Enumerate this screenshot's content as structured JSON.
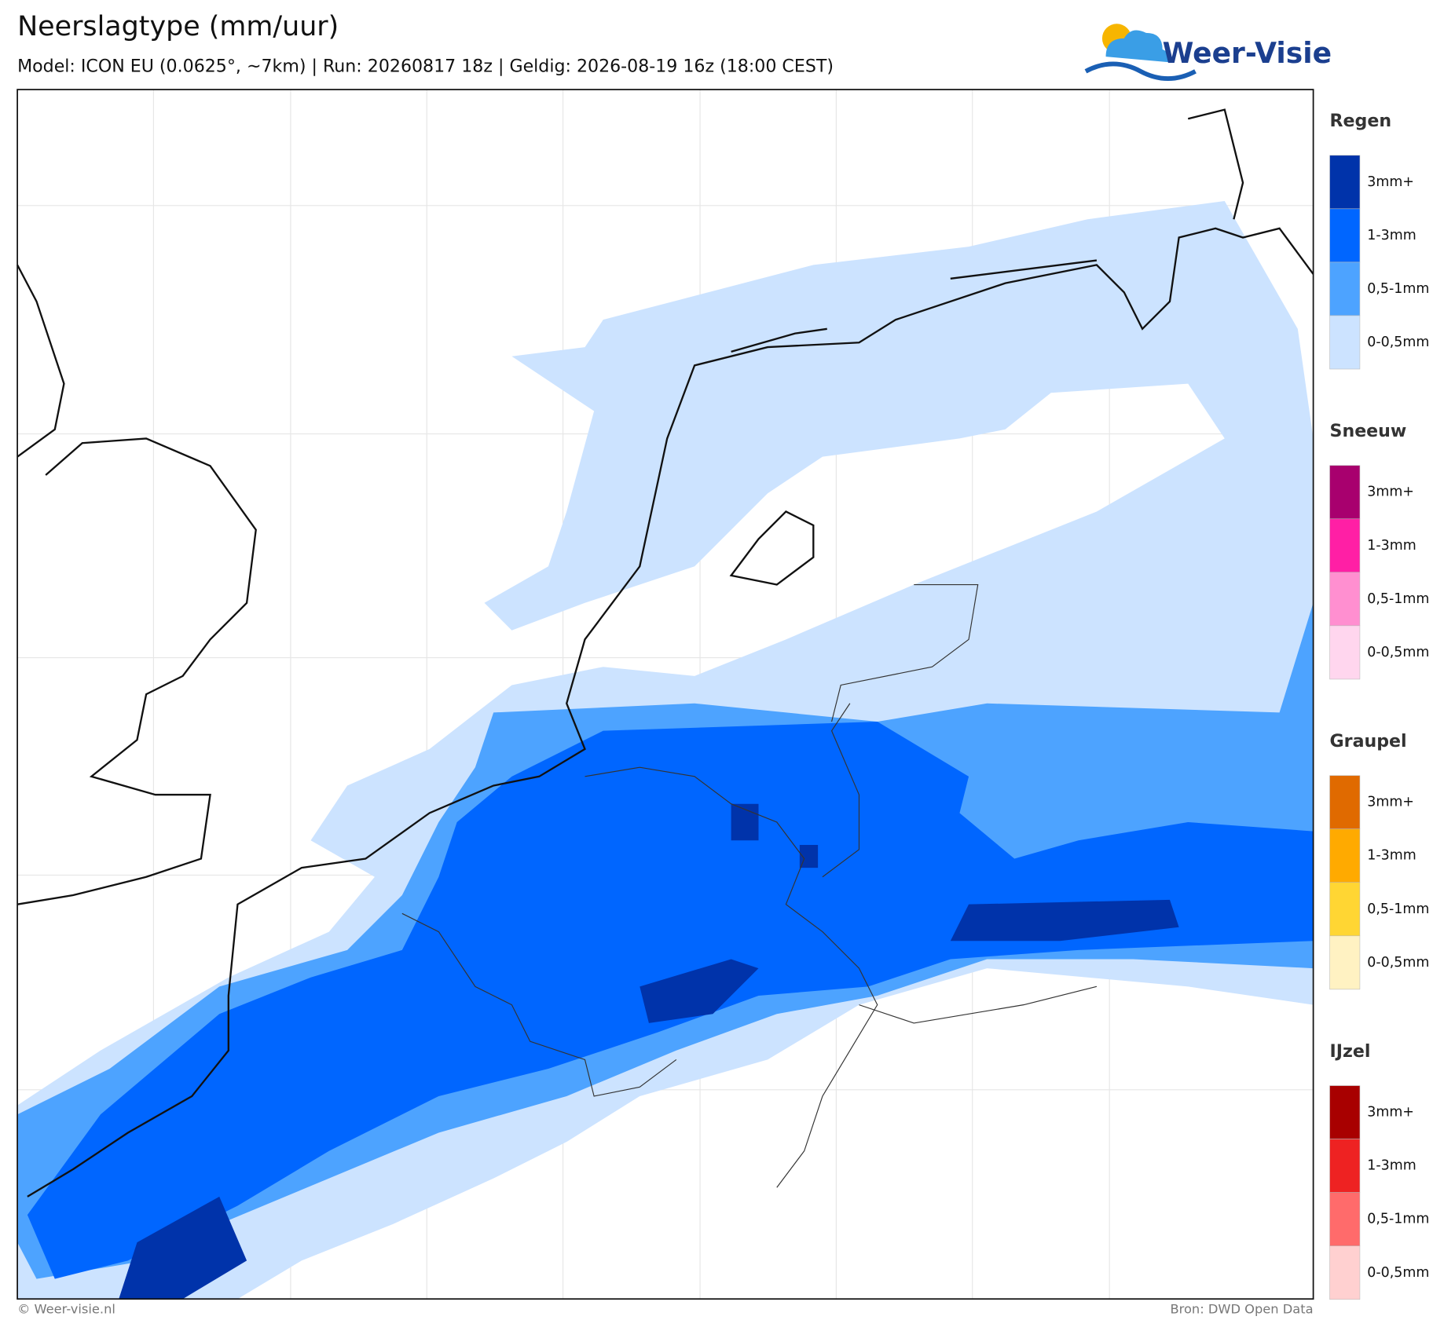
{
  "header": {
    "title": "Neerslagtype (mm/uur)",
    "subtitle": "Model: ICON EU (0.0625°, ~7km)  |  Run: 20260817 18z  |  Geldig: 2026-08-19 16z (18:00 CEST)"
  },
  "logo": {
    "text": "Weer-Visie"
  },
  "legend": [
    {
      "title": "Regen",
      "items": [
        {
          "label": "3mm+",
          "color": "#0033aa"
        },
        {
          "label": "1-3mm",
          "color": "#0066ff"
        },
        {
          "label": "0,5-1mm",
          "color": "#4da3ff"
        },
        {
          "label": "0-0,5mm",
          "color": "#cce3ff"
        }
      ]
    },
    {
      "title": "Sneeuw",
      "items": [
        {
          "label": "3mm+",
          "color": "#a8006e"
        },
        {
          "label": "1-3mm",
          "color": "#ff1fa5"
        },
        {
          "label": "0,5-1mm",
          "color": "#ff8fd0"
        },
        {
          "label": "0-0,5mm",
          "color": "#ffd6ee"
        }
      ]
    },
    {
      "title": "Graupel",
      "items": [
        {
          "label": "3mm+",
          "color": "#e06a00"
        },
        {
          "label": "1-3mm",
          "color": "#ffaa00"
        },
        {
          "label": "0,5-1mm",
          "color": "#ffd633"
        },
        {
          "label": "0-0,5mm",
          "color": "#fff2c2"
        }
      ]
    },
    {
      "title": "IJzel",
      "items": [
        {
          "label": "3mm+",
          "color": "#a80000"
        },
        {
          "label": "1-3mm",
          "color": "#ee2222"
        },
        {
          "label": "0,5-1mm",
          "color": "#ff6b6b"
        },
        {
          "label": "0-0,5mm",
          "color": "#ffd0d0"
        }
      ]
    }
  ],
  "footer": {
    "copyright": "© Weer-visie.nl",
    "source": "Bron: DWD Open Data"
  }
}
